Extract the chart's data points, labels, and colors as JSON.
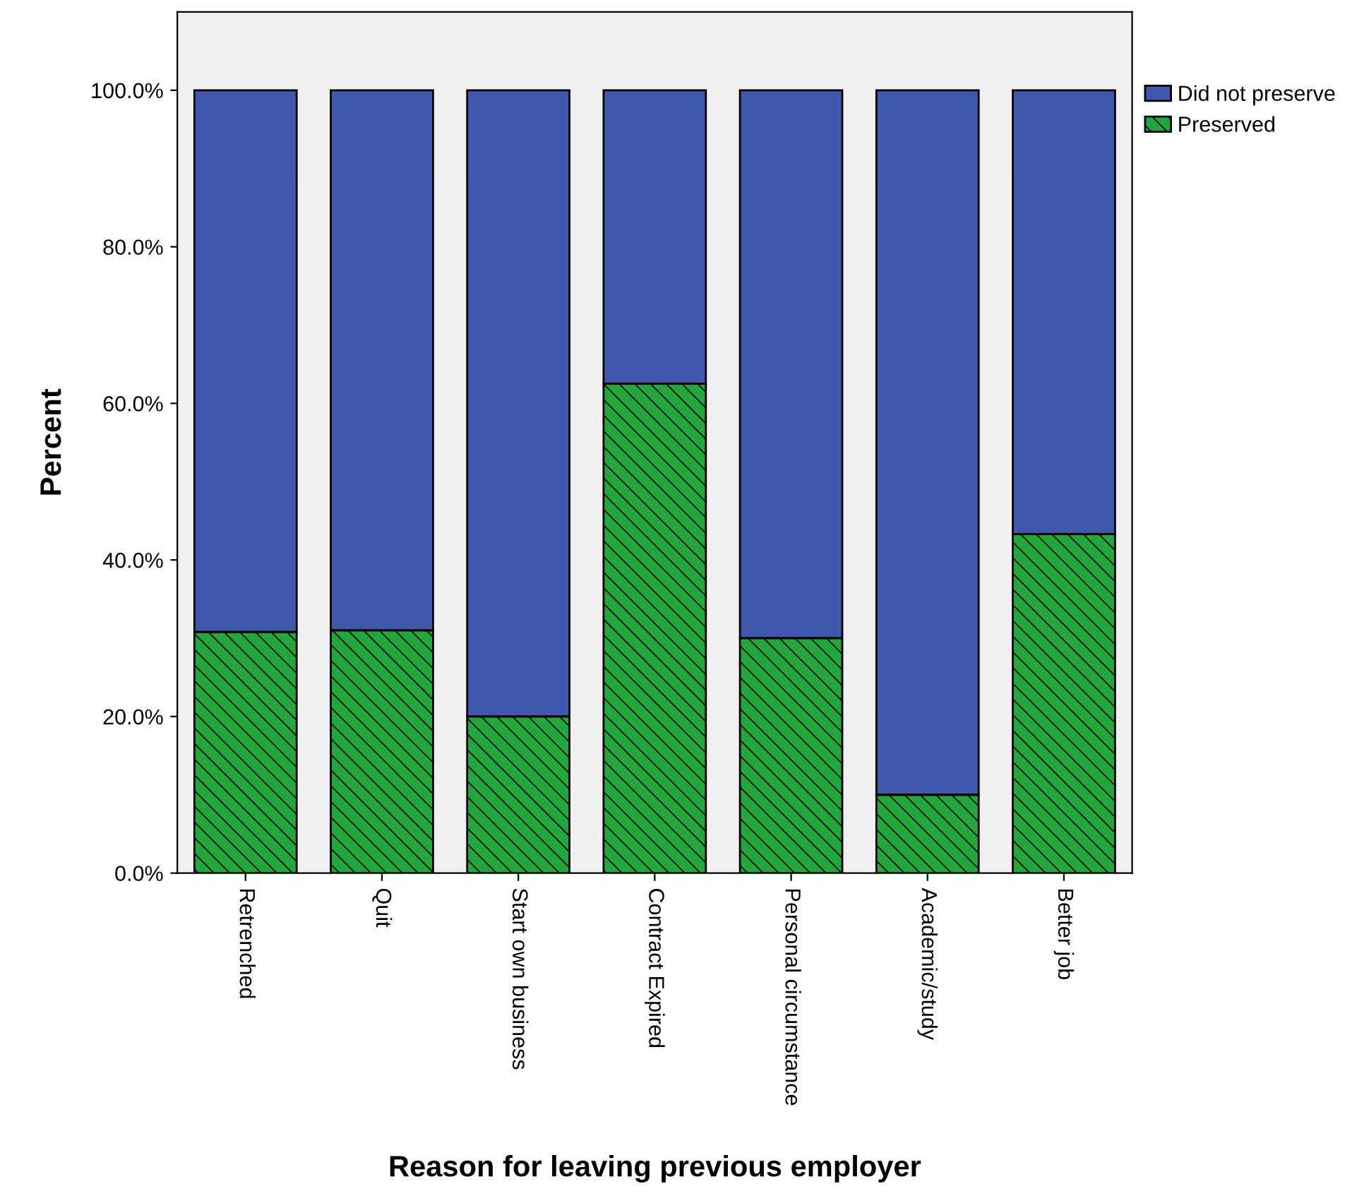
{
  "chart_data": {
    "type": "bar",
    "stacked": true,
    "xlabel": "Reason for leaving previous employer",
    "ylabel": "Percent",
    "categories": [
      "Retrenched",
      "Quit",
      "Start own business",
      "Contract Expired",
      "Personal circumstance",
      "Academic/study",
      "Better job"
    ],
    "series": [
      {
        "name": "Preserved",
        "color": "#22a83a",
        "values": [
          30.8,
          31.0,
          20.0,
          62.5,
          30.0,
          10.0,
          43.3
        ]
      },
      {
        "name": "Did not preserve",
        "color": "#3e58ac",
        "values": [
          69.2,
          69.0,
          80.0,
          37.5,
          70.0,
          90.0,
          56.7
        ]
      }
    ],
    "ylim": [
      0,
      110
    ],
    "yticks": [
      {
        "value": 0,
        "label": "0.0%"
      },
      {
        "value": 20,
        "label": "20.0%"
      },
      {
        "value": 40,
        "label": "40.0%"
      },
      {
        "value": 60,
        "label": "60.0%"
      },
      {
        "value": 80,
        "label": "80.0%"
      },
      {
        "value": 100,
        "label": "100.0%"
      }
    ],
    "grid": false,
    "legend": "top right"
  }
}
